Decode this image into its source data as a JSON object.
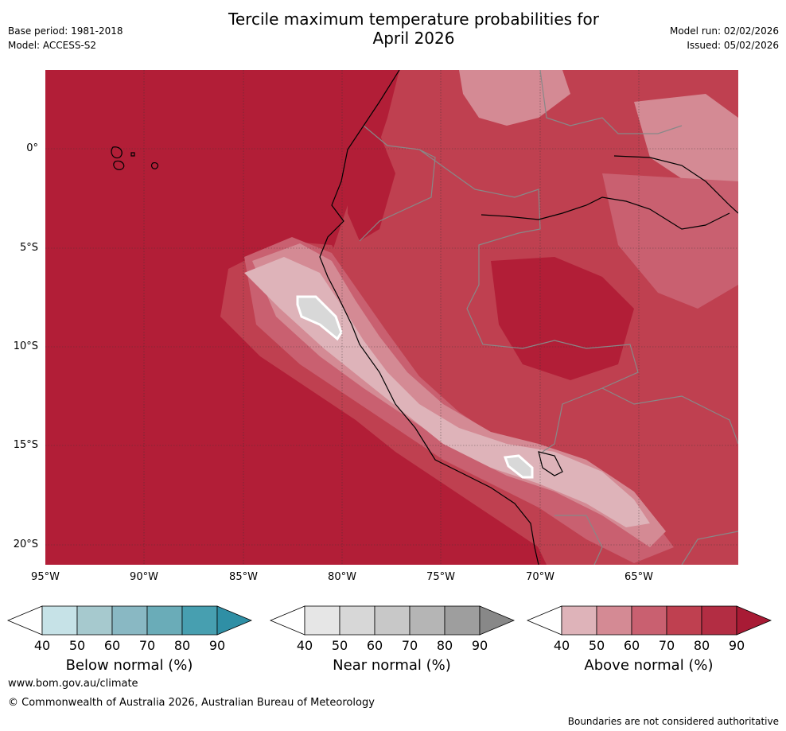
{
  "header": {
    "title_line1": "Tercile maximum temperature probabilities for",
    "title_line2": "April 2026",
    "base_period": "Base period: 1981-2018",
    "model": "Model: ACCESS-S2",
    "model_run": "Model run: 02/02/2026",
    "issued": "Issued: 05/02/2026"
  },
  "map": {
    "lat_ticks": [
      "0°",
      "5°S",
      "10°S",
      "15°S",
      "20°S"
    ],
    "lon_ticks": [
      "95°W",
      "90°W",
      "85°W",
      "80°W",
      "75°W",
      "70°W",
      "65°W"
    ],
    "colors": {
      "above_90": "#b21e37",
      "above_80": "#bf4050",
      "above_70": "#c96070",
      "above_60": "#d48a94",
      "above_50": "#deb3b9",
      "near_50": "#d8d8d8",
      "coast": "#000000",
      "border": "#888888"
    }
  },
  "colorbars": {
    "ticks": [
      "40",
      "50",
      "60",
      "70",
      "80",
      "90"
    ],
    "below": {
      "label": "Below normal (%)",
      "colors": [
        "#c6e2e7",
        "#a6c9ce",
        "#89b8c3",
        "#6aacb8",
        "#479fb0",
        "#2f8fa5"
      ]
    },
    "near": {
      "label": "Near normal (%)",
      "colors": [
        "#e6e6e6",
        "#d7d7d7",
        "#c8c8c8",
        "#b5b5b5",
        "#9e9e9e",
        "#888888"
      ]
    },
    "above": {
      "label": "Above normal (%)",
      "colors": [
        "#deb3b9",
        "#d48a94",
        "#c96070",
        "#bf4050",
        "#b32d43",
        "#a81b35"
      ]
    }
  },
  "footer": {
    "website": "www.bom.gov.au/climate",
    "copyright": "© Commonwealth of Australia 2026, Australian Bureau of Meteorology",
    "disclaimer": "Boundaries are not considered authoritative"
  }
}
